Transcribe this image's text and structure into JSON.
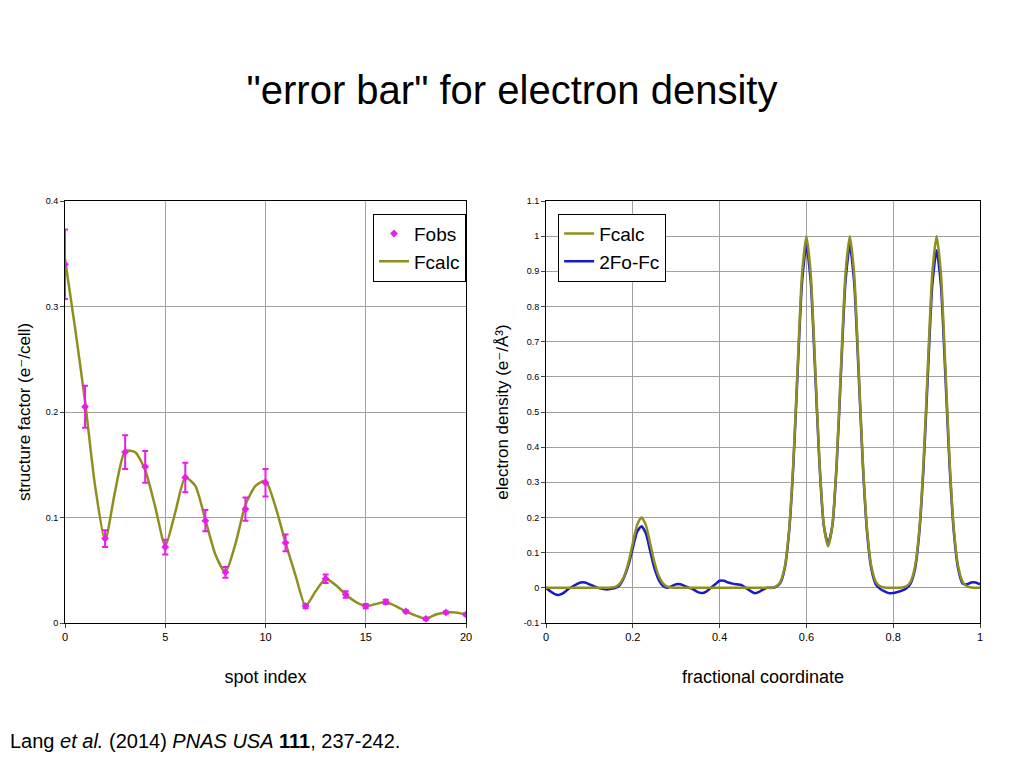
{
  "title": "\"error bar\" for electron density",
  "source": [
    {
      "text": "Lang "
    },
    {
      "text": "et al.",
      "style": "italic"
    },
    {
      "text": " (2014) "
    },
    {
      "text": "PNAS USA",
      "style": "italic"
    },
    {
      "text": " "
    },
    {
      "text": "111",
      "style": "bold"
    },
    {
      "text": ", 237-242."
    }
  ],
  "chart_data": [
    {
      "type": "line",
      "xlabel": "spot index",
      "ylabel": "structure factor (e⁻/cell)",
      "xlim": [
        0,
        20
      ],
      "xticks": [
        0,
        5,
        10,
        15,
        20
      ],
      "ylim": [
        0,
        0.4
      ],
      "yticks": [
        0,
        0.1,
        0.2,
        0.3,
        0.4
      ],
      "grid": true,
      "legend": "top right",
      "series": [
        {
          "name": "Fobs",
          "type": "scatter",
          "marker": "diamond",
          "color": "#e81ee8",
          "x": [
            0,
            1,
            2,
            3,
            4,
            5,
            6,
            7,
            8,
            9,
            10,
            11,
            12,
            13,
            14,
            15,
            16,
            17,
            18,
            19,
            20
          ],
          "values": [
            0.34,
            0.205,
            0.08,
            0.162,
            0.148,
            0.072,
            0.138,
            0.097,
            0.048,
            0.108,
            0.133,
            0.076,
            0.016,
            0.042,
            0.027,
            0.016,
            0.02,
            0.011,
            0.004,
            0.01,
            0.008
          ],
          "error": [
            0.033,
            0.02,
            0.008,
            0.016,
            0.015,
            0.007,
            0.014,
            0.01,
            0.005,
            0.011,
            0.013,
            0.008,
            0.002,
            0.004,
            0.003,
            0.002,
            0.002,
            0.001,
            0.001,
            0.001,
            0.001
          ]
        },
        {
          "name": "Fcalc",
          "type": "line",
          "line_style": "solid",
          "color": "#8f8f1f",
          "x": [
            0,
            0.5,
            1,
            1.5,
            2,
            2.5,
            3,
            3.5,
            4,
            4.5,
            5,
            5.5,
            6,
            6.5,
            7,
            7.5,
            8,
            8.5,
            9,
            9.5,
            10,
            10.5,
            11,
            11.5,
            12,
            12.5,
            13,
            13.5,
            14,
            14.5,
            15,
            15.5,
            16,
            16.5,
            17,
            17.5,
            18,
            18.5,
            19,
            19.5,
            20
          ],
          "values": [
            0.345,
            0.28,
            0.21,
            0.13,
            0.078,
            0.125,
            0.163,
            0.162,
            0.145,
            0.11,
            0.073,
            0.105,
            0.138,
            0.13,
            0.098,
            0.065,
            0.048,
            0.075,
            0.112,
            0.13,
            0.135,
            0.11,
            0.076,
            0.045,
            0.016,
            0.03,
            0.042,
            0.036,
            0.027,
            0.02,
            0.016,
            0.018,
            0.02,
            0.016,
            0.011,
            0.007,
            0.004,
            0.008,
            0.01,
            0.01,
            0.008
          ]
        }
      ]
    },
    {
      "type": "line",
      "xlabel": "fractional coordinate",
      "ylabel": "electron density (e⁻/Å³)",
      "xlim": [
        0,
        1
      ],
      "xticks": [
        0,
        0.2,
        0.4,
        0.6,
        0.8,
        1
      ],
      "ylim": [
        -0.1,
        1.1
      ],
      "yticks": [
        -0.1,
        0,
        0.1,
        0.2,
        0.3,
        0.4,
        0.5,
        0.6,
        0.7,
        0.8,
        0.9,
        1,
        1.1
      ],
      "grid": true,
      "legend": "top left",
      "series": [
        {
          "name": "Fcalc",
          "type": "line",
          "line_style": "solid",
          "color": "#8f8f1f",
          "x": [
            0,
            0.01,
            0.02,
            0.03,
            0.04,
            0.05,
            0.06,
            0.07,
            0.08,
            0.09,
            0.1,
            0.11,
            0.12,
            0.13,
            0.14,
            0.15,
            0.16,
            0.17,
            0.18,
            0.19,
            0.2,
            0.21,
            0.22,
            0.23,
            0.24,
            0.25,
            0.26,
            0.27,
            0.28,
            0.29,
            0.3,
            0.31,
            0.32,
            0.33,
            0.34,
            0.35,
            0.36,
            0.37,
            0.38,
            0.39,
            0.4,
            0.41,
            0.42,
            0.43,
            0.44,
            0.45,
            0.46,
            0.47,
            0.48,
            0.49,
            0.5,
            0.51,
            0.52,
            0.53,
            0.54,
            0.55,
            0.56,
            0.57,
            0.58,
            0.59,
            0.6,
            0.61,
            0.62,
            0.63,
            0.64,
            0.65,
            0.66,
            0.67,
            0.68,
            0.69,
            0.7,
            0.71,
            0.72,
            0.73,
            0.74,
            0.75,
            0.76,
            0.77,
            0.78,
            0.79,
            0.8,
            0.81,
            0.82,
            0.83,
            0.84,
            0.85,
            0.86,
            0.87,
            0.88,
            0.89,
            0.9,
            0.91,
            0.92,
            0.93,
            0.94,
            0.95,
            0.96,
            0.97,
            0.98,
            0.99,
            1
          ],
          "values": [
            0,
            0,
            0,
            0,
            0,
            0,
            0,
            0,
            0,
            0,
            0,
            0,
            0,
            0,
            0,
            0.001,
            0.003,
            0.012,
            0.033,
            0.072,
            0.127,
            0.179,
            0.2,
            0.179,
            0.127,
            0.072,
            0.033,
            0.012,
            0.003,
            0.001,
            0,
            0,
            0,
            0,
            0,
            0,
            0,
            0,
            0,
            0,
            0,
            0,
            0,
            0,
            0,
            0,
            0,
            0,
            0,
            0,
            0,
            0,
            0,
            0.004,
            0.017,
            0.059,
            0.163,
            0.36,
            0.635,
            0.893,
            1,
            0.893,
            0.636,
            0.364,
            0.18,
            0.118,
            0.18,
            0.364,
            0.636,
            0.893,
            1,
            0.893,
            0.635,
            0.36,
            0.163,
            0.059,
            0.017,
            0.004,
            0.001,
            0,
            0,
            0,
            0.001,
            0.004,
            0.017,
            0.059,
            0.163,
            0.36,
            0.635,
            0.893,
            1,
            0.893,
            0.635,
            0.36,
            0.163,
            0.059,
            0.017,
            0.004,
            0.001,
            0,
            0
          ]
        },
        {
          "name": "2Fo-Fc",
          "type": "line",
          "line_style": "solid",
          "color": "#1a1acc",
          "x": [
            0,
            0.01,
            0.02,
            0.03,
            0.04,
            0.05,
            0.06,
            0.07,
            0.08,
            0.09,
            0.1,
            0.11,
            0.12,
            0.13,
            0.14,
            0.15,
            0.16,
            0.17,
            0.18,
            0.19,
            0.2,
            0.21,
            0.22,
            0.23,
            0.24,
            0.25,
            0.26,
            0.27,
            0.28,
            0.29,
            0.3,
            0.31,
            0.32,
            0.33,
            0.34,
            0.35,
            0.36,
            0.37,
            0.38,
            0.39,
            0.4,
            0.41,
            0.42,
            0.43,
            0.44,
            0.45,
            0.46,
            0.47,
            0.48,
            0.49,
            0.5,
            0.51,
            0.52,
            0.53,
            0.54,
            0.55,
            0.56,
            0.57,
            0.58,
            0.59,
            0.6,
            0.61,
            0.62,
            0.63,
            0.64,
            0.65,
            0.66,
            0.67,
            0.68,
            0.69,
            0.7,
            0.71,
            0.72,
            0.73,
            0.74,
            0.75,
            0.76,
            0.77,
            0.78,
            0.79,
            0.8,
            0.81,
            0.82,
            0.83,
            0.84,
            0.85,
            0.86,
            0.87,
            0.88,
            0.89,
            0.9,
            0.91,
            0.92,
            0.93,
            0.94,
            0.95,
            0.96,
            0.97,
            0.98,
            0.99,
            1
          ],
          "values": [
            0,
            -0.01,
            -0.018,
            -0.02,
            -0.015,
            -0.005,
            0.003,
            0.01,
            0.015,
            0.015,
            0.01,
            0.005,
            0,
            -0.003,
            -0.005,
            -0.003,
            0,
            0.008,
            0.03,
            0.065,
            0.113,
            0.16,
            0.175,
            0.155,
            0.105,
            0.055,
            0.022,
            0.005,
            0,
            0.005,
            0.01,
            0.01,
            0.005,
            0,
            -0.005,
            -0.012,
            -0.015,
            -0.01,
            0,
            0.01,
            0.02,
            0.02,
            0.015,
            0.012,
            0.01,
            0.008,
            0,
            -0.008,
            -0.015,
            -0.012,
            -0.005,
            0,
            0,
            0.003,
            0.014,
            0.055,
            0.158,
            0.35,
            0.62,
            0.87,
            0.975,
            0.87,
            0.62,
            0.355,
            0.178,
            0.125,
            0.178,
            0.355,
            0.62,
            0.87,
            0.975,
            0.87,
            0.62,
            0.35,
            0.155,
            0.052,
            0.01,
            -0.003,
            -0.01,
            -0.015,
            -0.015,
            -0.012,
            -0.008,
            -0.002,
            0.012,
            0.052,
            0.155,
            0.345,
            0.61,
            0.86,
            0.96,
            0.86,
            0.61,
            0.345,
            0.155,
            0.052,
            0.012,
            0.01,
            0.015,
            0.015,
            0.01
          ]
        }
      ]
    }
  ]
}
